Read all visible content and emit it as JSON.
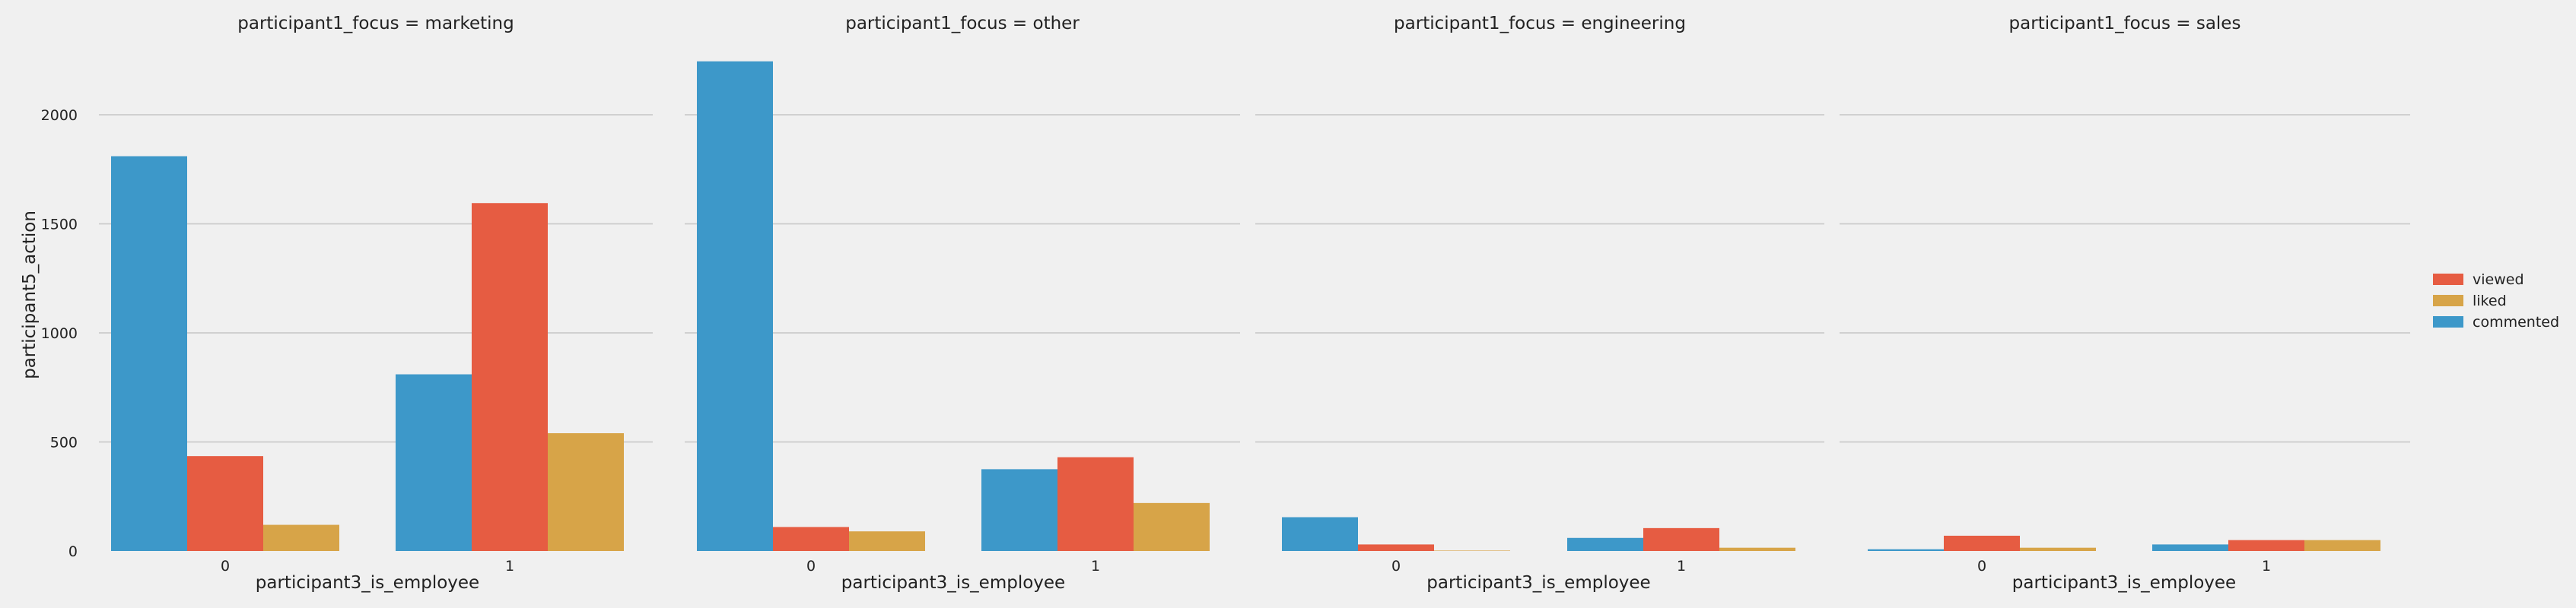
{
  "chart_data": {
    "type": "bar",
    "ylabel": "participant5_action",
    "xlabel": "participant3_is_employee",
    "ylim": [
      0,
      2300
    ],
    "yticks": [
      0,
      500,
      1000,
      1500,
      2000
    ],
    "categories": [
      "0",
      "1"
    ],
    "grid": true,
    "legend_position": "right",
    "series": [
      {
        "name": "commented",
        "color": "#3d98c9"
      },
      {
        "name": "viewed",
        "color": "#e65c42"
      },
      {
        "name": "liked",
        "color": "#d7a448"
      }
    ],
    "legend_order": [
      "viewed",
      "liked",
      "commented"
    ],
    "facets": [
      {
        "title": "participant1_focus = marketing",
        "values": {
          "commented": [
            1810,
            810
          ],
          "viewed": [
            435,
            1595
          ],
          "liked": [
            120,
            540
          ]
        }
      },
      {
        "title": "participant1_focus = other",
        "values": {
          "commented": [
            2245,
            375
          ],
          "viewed": [
            110,
            430
          ],
          "liked": [
            90,
            220
          ]
        }
      },
      {
        "title": "participant1_focus = engineering",
        "values": {
          "commented": [
            155,
            60
          ],
          "viewed": [
            30,
            105
          ],
          "liked": [
            2,
            15
          ]
        }
      },
      {
        "title": "participant1_focus = sales",
        "values": {
          "commented": [
            8,
            30
          ],
          "viewed": [
            70,
            50
          ],
          "liked": [
            15,
            50
          ]
        }
      }
    ]
  }
}
